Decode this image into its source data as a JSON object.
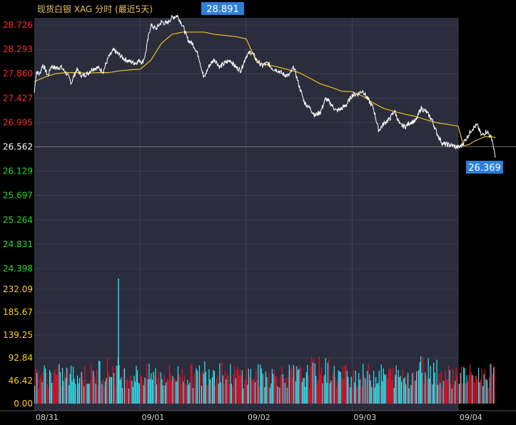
{
  "title": "现货白银 XAG 分时 (最近5天)",
  "colors": {
    "background": "#000000",
    "panel": "#2b2d3d",
    "grid": "#4a4c5c",
    "price_line": "#ffffff",
    "avg_line": "#e8c020",
    "up_red": "#ff2a2a",
    "down_green": "#22dd22",
    "neutral_white": "#ffffff",
    "vol_up": "#e8102a",
    "vol_down": "#2ee6ee",
    "callout": "#2e7fd8"
  },
  "chart_data": [
    {
      "type": "line",
      "name": "price",
      "y_ticks": [
        "28.726",
        "28.293",
        "27.860",
        "27.427",
        "26.995",
        "26.562",
        "26.129",
        "25.697",
        "25.264",
        "24.831",
        "24.398"
      ],
      "reference_price": 26.562,
      "x_labels": [
        "08/31",
        "09/01",
        "09/02",
        "09/03",
        "09/04"
      ],
      "max_price": "28.891",
      "last_price": "26.369",
      "series": [
        {
          "label": "price",
          "x": [
            0,
            0.02,
            0.05,
            0.08,
            0.1,
            0.13,
            0.16,
            0.2,
            0.25,
            0.3,
            0.35,
            0.4,
            0.45,
            0.5,
            0.55,
            0.6,
            0.65,
            0.7,
            0.75,
            0.8,
            0.85,
            0.9,
            0.95,
            1.0,
            1.02,
            1.05,
            1.08,
            1.1,
            1.15,
            1.2,
            1.25,
            1.3,
            1.35,
            1.4,
            1.45,
            1.5,
            1.55,
            1.6,
            1.65,
            1.7,
            1.75,
            1.8,
            1.85,
            1.9,
            1.95,
            2.0,
            2.05,
            2.1,
            2.15,
            2.2,
            2.25,
            2.3,
            2.35,
            2.4,
            2.45,
            2.5,
            2.55,
            2.6,
            2.65,
            2.7,
            2.75,
            2.8,
            2.85,
            2.9,
            2.95,
            3.0,
            3.05,
            3.1,
            3.15,
            3.2,
            3.25,
            3.3,
            3.35,
            3.4,
            3.45,
            3.5,
            3.55,
            3.6,
            3.65,
            3.7,
            3.75,
            3.8,
            3.85,
            3.9,
            3.95,
            4.0,
            4.03,
            4.08,
            4.13,
            4.18,
            4.22,
            4.27,
            4.32,
            4.35
          ],
          "y": [
            27.52,
            27.9,
            27.85,
            28.02,
            27.95,
            27.82,
            28.0,
            27.96,
            27.98,
            27.88,
            27.7,
            27.94,
            27.82,
            27.86,
            27.95,
            27.97,
            27.9,
            28.15,
            28.28,
            28.2,
            28.12,
            28.08,
            28.05,
            28.1,
            28.05,
            28.22,
            28.55,
            28.72,
            28.66,
            28.78,
            28.75,
            28.86,
            28.891,
            28.72,
            28.46,
            28.38,
            28.18,
            27.78,
            28.0,
            28.12,
            27.98,
            28.05,
            28.1,
            27.98,
            27.92,
            28.18,
            28.25,
            28.1,
            28.0,
            28.05,
            27.95,
            27.92,
            27.85,
            27.82,
            27.98,
            27.64,
            27.35,
            27.25,
            27.12,
            27.18,
            27.42,
            27.32,
            27.2,
            27.24,
            27.32,
            27.48,
            27.5,
            27.56,
            27.4,
            27.25,
            26.85,
            26.98,
            27.05,
            27.2,
            26.95,
            26.92,
            27.0,
            27.02,
            27.25,
            27.18,
            27.05,
            26.8,
            26.62,
            26.6,
            26.58,
            26.55,
            26.58,
            26.72,
            26.88,
            26.95,
            26.76,
            26.84,
            26.7,
            26.369
          ]
        },
        {
          "label": "avg",
          "x": [
            0,
            0.1,
            0.2,
            0.3,
            0.4,
            0.5,
            0.6,
            0.7,
            0.8,
            0.9,
            1.0,
            1.1,
            1.2,
            1.3,
            1.4,
            1.5,
            1.6,
            1.7,
            1.8,
            1.9,
            2.0,
            2.1,
            2.2,
            2.3,
            2.4,
            2.5,
            2.6,
            2.7,
            2.8,
            2.9,
            3.0,
            3.1,
            3.2,
            3.3,
            3.4,
            3.5,
            3.6,
            3.7,
            3.8,
            3.9,
            4.0,
            4.05,
            4.1,
            4.15,
            4.2,
            4.25,
            4.3,
            4.35
          ],
          "y": [
            27.72,
            27.8,
            27.86,
            27.88,
            27.88,
            27.87,
            27.88,
            27.88,
            27.91,
            27.93,
            27.94,
            28.1,
            28.4,
            28.56,
            28.6,
            28.6,
            28.6,
            28.56,
            28.54,
            28.52,
            28.48,
            28.06,
            28.02,
            27.98,
            27.93,
            27.88,
            27.78,
            27.68,
            27.62,
            27.55,
            27.54,
            27.46,
            27.34,
            27.24,
            27.19,
            27.14,
            27.1,
            27.04,
            26.99,
            26.96,
            26.93,
            26.58,
            26.6,
            26.66,
            26.7,
            26.74,
            26.74,
            26.73
          ]
        }
      ]
    },
    {
      "type": "bar",
      "name": "volume",
      "y_ticks": [
        "232.09",
        "185.67",
        "139.25",
        "92.84",
        "46.42",
        "0.00"
      ],
      "ylim": [
        0,
        232.09
      ],
      "spike": {
        "x": 0.79,
        "value": 254
      },
      "baseline_volume": 68,
      "high_volume_windows": [
        {
          "from": 0.6,
          "to": 0.8,
          "level": 80
        },
        {
          "from": 1.6,
          "to": 1.8,
          "level": 82
        },
        {
          "from": 2.6,
          "to": 2.8,
          "level": 80
        },
        {
          "from": 3.6,
          "to": 3.8,
          "level": 85
        }
      ]
    }
  ]
}
